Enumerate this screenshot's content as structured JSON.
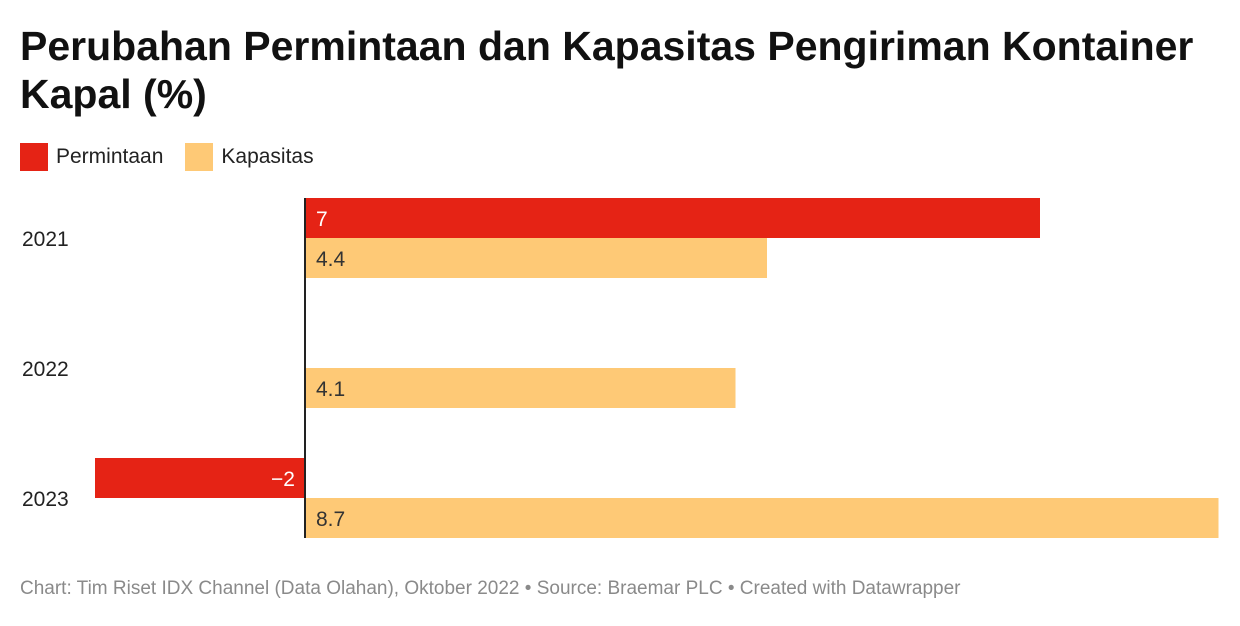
{
  "chart_data": {
    "type": "bar",
    "orientation": "horizontal",
    "title": "Perubahan Permintaan dan Kapasitas Pengiriman Kontainer Kapal (%)",
    "categories": [
      "2021",
      "2022",
      "2023"
    ],
    "series": [
      {
        "name": "Permintaan",
        "color": "#e52315",
        "values": [
          7,
          null,
          -2
        ],
        "labels": [
          "7",
          "",
          "−2"
        ]
      },
      {
        "name": "Kapasitas",
        "color": "#fec976",
        "values": [
          4.4,
          4.1,
          8.7
        ],
        "labels": [
          "4.4",
          "4.1",
          "8.7"
        ]
      }
    ],
    "xlim": [
      -2,
      8.7
    ],
    "legend_position": "top-left",
    "grid": false
  },
  "footer": "Chart: Tim Riset IDX Channel (Data Olahan), Oktober 2022 • Source: Braemar PLC • Created with Datawrapper"
}
